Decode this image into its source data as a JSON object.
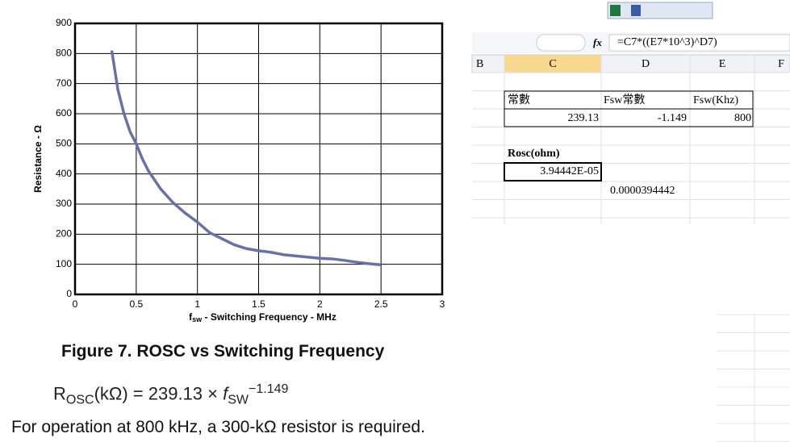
{
  "chart_data": {
    "type": "line",
    "y_label": "Resistance - Ω",
    "x_label_symbol": "f",
    "x_label_subscript": "sw",
    "x_label_rest": " - Switching Frequency - MHz",
    "x": [
      0.3,
      0.35,
      0.4,
      0.45,
      0.5,
      0.55,
      0.6,
      0.7,
      0.8,
      0.9,
      1.0,
      1.1,
      1.2,
      1.3,
      1.4,
      1.5,
      1.6,
      1.7,
      1.8,
      1.9,
      2.0,
      2.1,
      2.2,
      2.3,
      2.4,
      2.5
    ],
    "series": [
      {
        "color": "#6672a8",
        "values": [
          810,
          680,
          600,
          540,
          500,
          450,
          410,
          350,
          305,
          270,
          240,
          205,
          185,
          165,
          152,
          145,
          140,
          132,
          128,
          124,
          120,
          118,
          113,
          107,
          102,
          98
        ]
      }
    ],
    "xlim": [
      0,
      3
    ],
    "xticks": [
      0,
      0.5,
      1,
      1.5,
      2,
      2.5,
      3
    ],
    "ylim": [
      0,
      900
    ],
    "yticks": [
      0,
      100,
      200,
      300,
      400,
      500,
      600,
      700,
      800,
      900
    ],
    "grid": true
  },
  "caption": "Figure 7.  ROSC vs Switching Frequency",
  "formula": {
    "r": "R",
    "r_sub": "OSC",
    "middle": "(kΩ) = 239.13 × ",
    "f": "f",
    "f_sub": "SW",
    "exponent": "−1.149"
  },
  "body_text": "For operation at 800 kHz, a 300-kΩ resistor is required.",
  "spreadsheet": {
    "formula_bar": {
      "fx": "fx",
      "formula": "=C7*((E7*10^3)^D7)"
    },
    "columns": [
      "B",
      "C",
      "D",
      "E",
      "F"
    ],
    "header_row": [
      "常數",
      "Fsw常數",
      "Fsw(Khz)"
    ],
    "value_row": [
      "239.13",
      "-1.149",
      "800"
    ],
    "result_label": "Rosc(ohm)",
    "result_value": "3.94442E-05",
    "result_decimal": "0.0000394442"
  }
}
